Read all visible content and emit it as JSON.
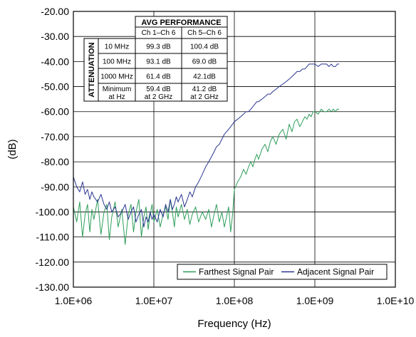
{
  "chart_data": {
    "type": "line",
    "xlabel": "Frequency (Hz)",
    "ylabel": "(dB)",
    "x_scale": "log",
    "xlim": [
      1000000,
      10000000000
    ],
    "ylim": [
      -130,
      -20
    ],
    "grid": true,
    "x_tick_values": [
      1000000,
      10000000,
      100000000,
      1000000000,
      10000000000
    ],
    "x_tick_labels": [
      "1.0E+06",
      "1.0E+07",
      "1.0E+08",
      "1.0E+09",
      "1.0E+10"
    ],
    "y_tick_values": [
      -20,
      -30,
      -40,
      -50,
      -60,
      -70,
      -80,
      -90,
      -100,
      -110,
      -120,
      -130
    ],
    "y_tick_labels": [
      "-20.00",
      "-30.00",
      "-40.00",
      "-50.00",
      "-60.00",
      "-70.00",
      "-80.00",
      "-90.00",
      "-100.00",
      "-110.00",
      "-120.00",
      "-130.00"
    ],
    "legend_position": "bottom-right",
    "series": [
      {
        "name": "Farthest Signal Pair",
        "color": "#2e9e5b",
        "x": [
          1000000,
          1100000,
          1200000,
          1300000,
          1400000,
          1500000,
          1600000,
          1700000,
          1800000,
          2000000,
          2200000,
          2400000,
          2600000,
          2800000,
          3000000,
          3300000,
          3600000,
          4000000,
          4400000,
          4800000,
          5200000,
          5600000,
          6000000,
          6500000,
          7000000,
          7500000,
          8000000,
          8500000,
          9000000,
          9500000,
          10000000,
          11000000,
          12000000,
          13000000,
          14000000,
          15000000,
          16000000,
          17000000,
          18000000,
          19000000,
          20000000,
          22000000,
          24000000,
          26000000,
          28000000,
          30000000,
          33000000,
          36000000,
          40000000,
          44000000,
          48000000,
          52000000,
          56000000,
          60000000,
          65000000,
          70000000,
          75000000,
          80000000,
          85000000,
          90000000,
          95000000,
          100000000,
          110000000,
          120000000,
          130000000,
          140000000,
          150000000,
          160000000,
          170000000,
          180000000,
          190000000,
          200000000,
          220000000,
          240000000,
          260000000,
          280000000,
          300000000,
          330000000,
          360000000,
          400000000,
          440000000,
          480000000,
          520000000,
          560000000,
          600000000,
          650000000,
          700000000,
          750000000,
          800000000,
          850000000,
          900000000,
          950000000,
          1000000000,
          1100000000,
          1200000000,
          1300000000,
          1400000000,
          1500000000,
          1600000000,
          1700000000,
          1800000000,
          1900000000,
          2000000000
        ],
        "y": [
          -98,
          -104,
          -96,
          -110,
          -101,
          -97,
          -108,
          -99,
          -103,
          -95,
          -109,
          -100,
          -97,
          -111,
          -102,
          -96,
          -106,
          -99,
          -113,
          -101,
          -97,
          -108,
          -100,
          -95,
          -110,
          -102,
          -98,
          -107,
          -101,
          -97,
          -104,
          -99,
          -106,
          -101,
          -98,
          -103,
          -95,
          -100,
          -106,
          -98,
          -102,
          -97,
          -103,
          -99,
          -105,
          -101,
          -98,
          -104,
          -100,
          -103,
          -99,
          -106,
          -101,
          -97,
          -104,
          -100,
          -106,
          -102,
          -98,
          -108,
          -101,
          -91,
          -88,
          -86,
          -83,
          -85,
          -82,
          -80,
          -82,
          -79,
          -77,
          -79,
          -75,
          -73,
          -76,
          -72,
          -70,
          -73,
          -69,
          -67,
          -71,
          -65,
          -68,
          -64,
          -63,
          -66,
          -64,
          -62,
          -63,
          -61,
          -62,
          -60,
          -60,
          -61,
          -59,
          -60,
          -60,
          -59,
          -60,
          -59,
          -60,
          -59,
          -59
        ]
      },
      {
        "name": "Adjacent Signal Pair",
        "color": "#2a3590",
        "x": [
          1000000,
          1100000,
          1200000,
          1300000,
          1400000,
          1500000,
          1600000,
          1700000,
          1800000,
          2000000,
          2200000,
          2400000,
          2600000,
          2800000,
          3000000,
          3300000,
          3600000,
          4000000,
          4400000,
          4800000,
          5200000,
          5600000,
          6000000,
          6500000,
          7000000,
          7500000,
          8000000,
          8500000,
          9000000,
          9500000,
          10000000,
          11000000,
          12000000,
          13000000,
          14000000,
          15000000,
          16000000,
          17000000,
          18000000,
          19000000,
          20000000,
          22000000,
          24000000,
          26000000,
          28000000,
          30000000,
          33000000,
          36000000,
          40000000,
          44000000,
          48000000,
          52000000,
          56000000,
          60000000,
          65000000,
          70000000,
          75000000,
          80000000,
          85000000,
          90000000,
          95000000,
          100000000,
          110000000,
          120000000,
          130000000,
          140000000,
          150000000,
          160000000,
          170000000,
          180000000,
          190000000,
          200000000,
          220000000,
          240000000,
          260000000,
          280000000,
          300000000,
          330000000,
          360000000,
          400000000,
          440000000,
          480000000,
          520000000,
          560000000,
          600000000,
          650000000,
          700000000,
          750000000,
          800000000,
          850000000,
          900000000,
          950000000,
          1000000000,
          1100000000,
          1200000000,
          1300000000,
          1400000000,
          1500000000,
          1600000000,
          1700000000,
          1800000000,
          1900000000,
          2000000000
        ],
        "y": [
          -86,
          -90,
          -92,
          -88,
          -93,
          -91,
          -95,
          -92,
          -94,
          -96,
          -93,
          -97,
          -99,
          -96,
          -100,
          -98,
          -102,
          -100,
          -97,
          -103,
          -100,
          -98,
          -104,
          -101,
          -99,
          -106,
          -102,
          -104,
          -100,
          -103,
          -101,
          -104,
          -99,
          -102,
          -97,
          -100,
          -95,
          -99,
          -97,
          -94,
          -96,
          -93,
          -98,
          -95,
          -92,
          -94,
          -90,
          -88,
          -85,
          -82,
          -80,
          -78,
          -76,
          -74,
          -73,
          -71,
          -69,
          -68,
          -67,
          -66,
          -65,
          -64,
          -63,
          -62,
          -61,
          -60,
          -60,
          -59,
          -58,
          -57,
          -56,
          -56,
          -55,
          -54,
          -53,
          -53,
          -52,
          -51,
          -50,
          -49,
          -48,
          -47,
          -46,
          -45,
          -44,
          -44,
          -43,
          -43,
          -42,
          -41,
          -41,
          -41,
          -41,
          -42,
          -41,
          -41,
          -41,
          -42,
          -41,
          -42,
          -42,
          -41,
          -41
        ]
      }
    ]
  },
  "table": {
    "title": "AVG PERFORMANCE",
    "side_label": "ATTENUATION",
    "col_headers": [
      "Ch 1–Ch 6",
      "Ch 5–Ch 6"
    ],
    "rows": [
      {
        "label": [
          "10 MHz"
        ],
        "c1": [
          "99.3 dB"
        ],
        "c2": [
          "100.4 dB"
        ]
      },
      {
        "label": [
          "100 MHz"
        ],
        "c1": [
          "93.1 dB"
        ],
        "c2": [
          "69.0 dB"
        ]
      },
      {
        "label": [
          "1000 MHz"
        ],
        "c1": [
          "61.4 dB"
        ],
        "c2": [
          "42.1dB"
        ]
      },
      {
        "label": [
          "Minimum",
          "at Hz"
        ],
        "c1": [
          "59.4 dB",
          "at 2 GHz"
        ],
        "c2": [
          "41.2 dB",
          "at 2 GHz"
        ]
      }
    ]
  }
}
